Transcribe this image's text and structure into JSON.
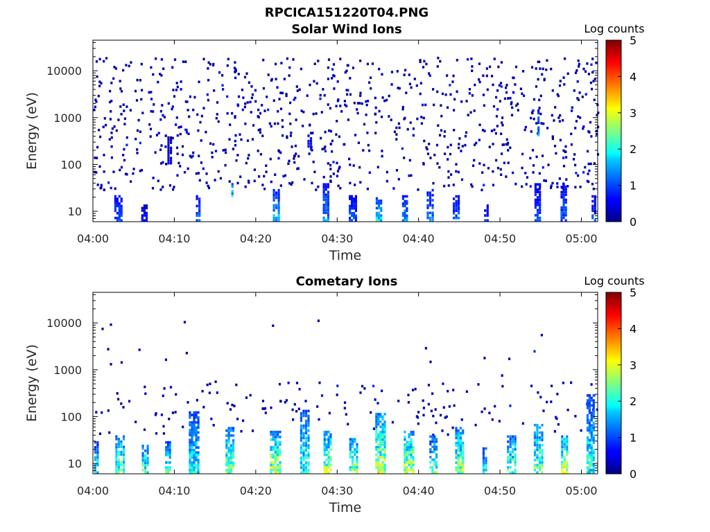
{
  "figure": {
    "title": "RPCICA151220T04.PNG"
  },
  "chart_data": [
    {
      "type": "heatmap",
      "title": "Solar Wind Ions",
      "xlabel": "Time",
      "ylabel": "Energy (eV)",
      "x_range": [
        "04:00",
        "05:02"
      ],
      "y_range": [
        6,
        45000
      ],
      "y_scale": "log",
      "x_ticks": [
        "04:00",
        "04:10",
        "04:20",
        "04:30",
        "04:40",
        "04:50",
        "05:00"
      ],
      "y_ticks": [
        "10",
        "100",
        "1000",
        "10000"
      ],
      "colorbar": {
        "label": "Log counts",
        "range": [
          0,
          5
        ],
        "ticks": [
          "0",
          "1",
          "2",
          "3",
          "4",
          "5"
        ],
        "colormap": "jet"
      },
      "background": "#ffffff",
      "features": [
        {
          "kind": "scatter",
          "t_min": 0,
          "t_max": 62,
          "e_min": 30,
          "e_max": 20000,
          "level": 0.2,
          "count": 900
        },
        {
          "kind": "band",
          "t": 3.0,
          "width": 1.0,
          "e_min": 6,
          "e_max": 22,
          "level": 1.0
        },
        {
          "kind": "band",
          "t": 6.2,
          "width": 0.8,
          "e_min": 6,
          "e_max": 14,
          "level": 0.6
        },
        {
          "kind": "band",
          "t": 9.3,
          "width": 0.6,
          "e_min": 100,
          "e_max": 400,
          "level": 0.5
        },
        {
          "kind": "band",
          "t": 12.8,
          "width": 0.6,
          "e_min": 6,
          "e_max": 22,
          "level": 1.2
        },
        {
          "kind": "band",
          "t": 17.0,
          "width": 0.4,
          "e_min": 20,
          "e_max": 40,
          "level": 1.8
        },
        {
          "kind": "band",
          "t": 22.4,
          "width": 0.9,
          "e_min": 6,
          "e_max": 30,
          "level": 1.5
        },
        {
          "kind": "band",
          "t": 26.5,
          "width": 0.6,
          "e_min": 200,
          "e_max": 500,
          "level": 0.7
        },
        {
          "kind": "band",
          "t": 28.5,
          "width": 0.8,
          "e_min": 6,
          "e_max": 40,
          "level": 1.3
        },
        {
          "kind": "band",
          "t": 31.8,
          "width": 1.0,
          "e_min": 6,
          "e_max": 22,
          "level": 1.0
        },
        {
          "kind": "band",
          "t": 35.0,
          "width": 0.8,
          "e_min": 6,
          "e_max": 20,
          "level": 1.7
        },
        {
          "kind": "band",
          "t": 38.2,
          "width": 0.7,
          "e_min": 6,
          "e_max": 22,
          "level": 1.4
        },
        {
          "kind": "band",
          "t": 41.3,
          "width": 0.9,
          "e_min": 6,
          "e_max": 30,
          "level": 1.2
        },
        {
          "kind": "band",
          "t": 44.5,
          "width": 0.9,
          "e_min": 6,
          "e_max": 22,
          "level": 1.1
        },
        {
          "kind": "band",
          "t": 48.2,
          "width": 0.6,
          "e_min": 6,
          "e_max": 14,
          "level": 0.8
        },
        {
          "kind": "band",
          "t": 54.5,
          "width": 0.8,
          "e_min": 6,
          "e_max": 40,
          "level": 0.9
        },
        {
          "kind": "band",
          "t": 54.6,
          "width": 0.3,
          "e_min": 400,
          "e_max": 1500,
          "level": 1.4
        },
        {
          "kind": "band",
          "t": 57.7,
          "width": 0.8,
          "e_min": 6,
          "e_max": 40,
          "level": 1.0
        },
        {
          "kind": "band",
          "t": 61.4,
          "width": 0.6,
          "e_min": 6,
          "e_max": 22,
          "level": 0.9
        }
      ]
    },
    {
      "type": "heatmap",
      "title": "Cometary Ions",
      "xlabel": "Time",
      "ylabel": "Energy (eV)",
      "x_range": [
        "04:00",
        "05:02"
      ],
      "y_range": [
        6,
        45000
      ],
      "y_scale": "log",
      "x_ticks": [
        "04:00",
        "04:10",
        "04:20",
        "04:30",
        "04:40",
        "04:50",
        "05:00"
      ],
      "y_ticks": [
        "10",
        "100",
        "1000",
        "10000"
      ],
      "colorbar": {
        "label": "Log counts",
        "range": [
          0,
          5
        ],
        "ticks": [
          "0",
          "1",
          "2",
          "3",
          "4",
          "5"
        ],
        "colormap": "jet"
      },
      "background": "#ffffff",
      "features": [
        {
          "kind": "scatter",
          "t_min": 0,
          "t_max": 62,
          "e_min": 40,
          "e_max": 600,
          "level": 0.2,
          "count": 160
        },
        {
          "kind": "scatter",
          "t_min": 0,
          "t_max": 62,
          "e_min": 600,
          "e_max": 12000,
          "level": 0.2,
          "count": 18
        },
        {
          "kind": "band",
          "t": 0.3,
          "width": 0.6,
          "e_min": 6,
          "e_max": 30,
          "level": 1.8
        },
        {
          "kind": "band",
          "t": 3.2,
          "width": 1.2,
          "e_min": 6,
          "e_max": 40,
          "level": 2.4
        },
        {
          "kind": "band",
          "t": 6.3,
          "width": 0.9,
          "e_min": 6,
          "e_max": 25,
          "level": 2.3
        },
        {
          "kind": "band",
          "t": 9.1,
          "width": 0.7,
          "e_min": 6,
          "e_max": 30,
          "level": 2.1
        },
        {
          "kind": "band",
          "t": 12.3,
          "width": 1.3,
          "e_min": 6,
          "e_max": 130,
          "level": 1.9
        },
        {
          "kind": "band",
          "t": 16.7,
          "width": 1.1,
          "e_min": 6,
          "e_max": 60,
          "level": 2.5
        },
        {
          "kind": "band",
          "t": 22.3,
          "width": 1.4,
          "e_min": 6,
          "e_max": 50,
          "level": 2.7
        },
        {
          "kind": "band",
          "t": 25.9,
          "width": 1.2,
          "e_min": 6,
          "e_max": 140,
          "level": 2.0
        },
        {
          "kind": "band",
          "t": 28.7,
          "width": 1.0,
          "e_min": 6,
          "e_max": 50,
          "level": 2.7
        },
        {
          "kind": "band",
          "t": 31.9,
          "width": 1.1,
          "e_min": 6,
          "e_max": 35,
          "level": 2.6
        },
        {
          "kind": "band",
          "t": 35.2,
          "width": 1.3,
          "e_min": 6,
          "e_max": 120,
          "level": 2.8
        },
        {
          "kind": "band",
          "t": 38.7,
          "width": 1.3,
          "e_min": 6,
          "e_max": 50,
          "level": 2.8
        },
        {
          "kind": "band",
          "t": 41.7,
          "width": 1.0,
          "e_min": 6,
          "e_max": 40,
          "level": 2.1
        },
        {
          "kind": "band",
          "t": 44.9,
          "width": 1.1,
          "e_min": 6,
          "e_max": 60,
          "level": 2.6
        },
        {
          "kind": "band",
          "t": 48.0,
          "width": 0.6,
          "e_min": 6,
          "e_max": 22,
          "level": 1.9
        },
        {
          "kind": "band",
          "t": 51.3,
          "width": 1.2,
          "e_min": 6,
          "e_max": 40,
          "level": 2.3
        },
        {
          "kind": "band",
          "t": 54.6,
          "width": 1.2,
          "e_min": 6,
          "e_max": 70,
          "level": 2.4
        },
        {
          "kind": "band",
          "t": 57.8,
          "width": 0.9,
          "e_min": 6,
          "e_max": 40,
          "level": 2.8
        },
        {
          "kind": "band",
          "t": 61.0,
          "width": 1.0,
          "e_min": 6,
          "e_max": 300,
          "level": 2.0
        }
      ]
    }
  ]
}
